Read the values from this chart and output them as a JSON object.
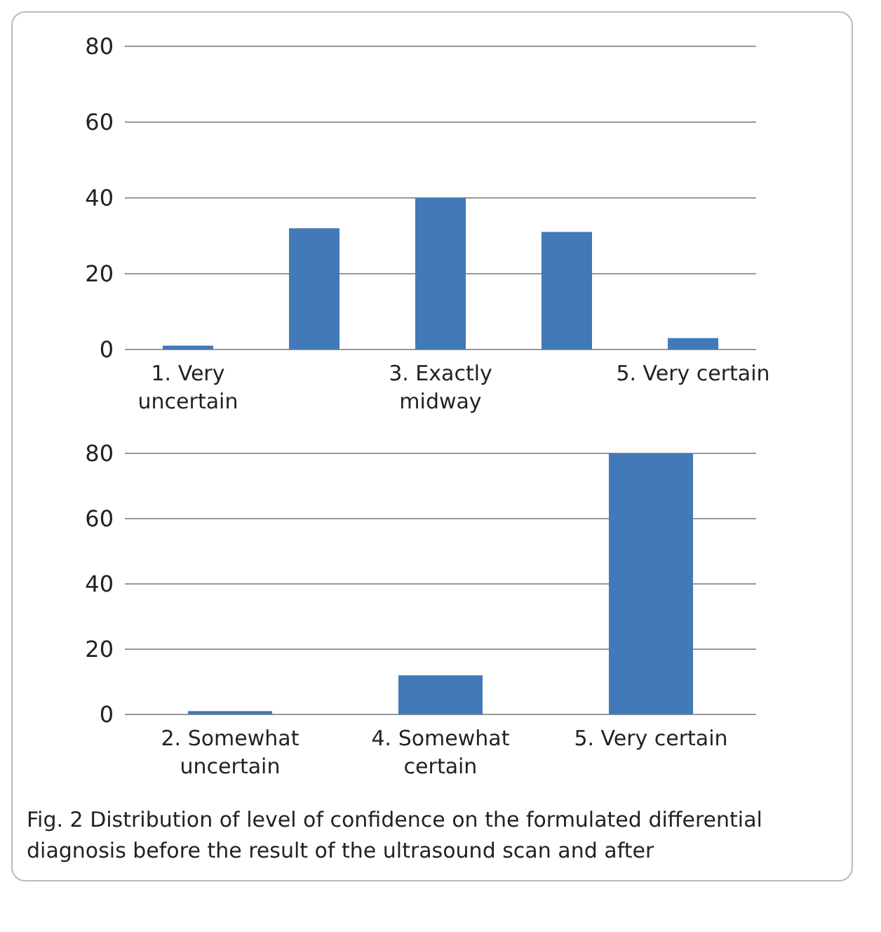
{
  "chart_data": [
    {
      "type": "bar",
      "categories": [
        "1. Very uncertain",
        null,
        "3. Exactly midway",
        null,
        "5. Very certain"
      ],
      "values": [
        1,
        32,
        40,
        31,
        3
      ],
      "color": "#4279b8",
      "ylim": [
        0,
        80
      ],
      "yticks": [
        0,
        20,
        40,
        60,
        80
      ],
      "grid": "y"
    },
    {
      "type": "bar",
      "categories": [
        "2. Somewhat uncertain",
        "4. Somewhat certain",
        "5. Very certain"
      ],
      "values": [
        1,
        12,
        80
      ],
      "color": "#4279b8",
      "ylim": [
        0,
        80
      ],
      "yticks": [
        0,
        20,
        40,
        60,
        80
      ],
      "grid": "y",
      "annotations": [
        "Fig. 2  Distribution of level of confidence on the formulated differential diagnosis before the result of the ultrasound scan and after"
      ]
    }
  ]
}
